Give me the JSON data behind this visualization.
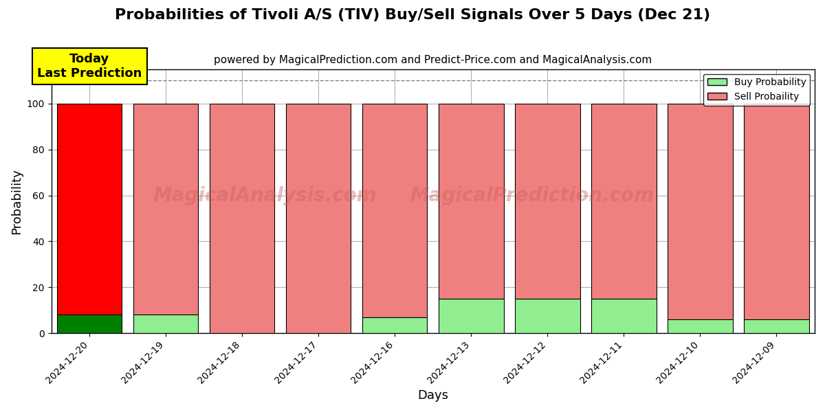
{
  "title": "Probabilities of Tivoli A/S (TIV) Buy/Sell Signals Over 5 Days (Dec 21)",
  "subtitle": "powered by MagicalPrediction.com and Predict-Price.com and MagicalAnalysis.com",
  "xlabel": "Days",
  "ylabel": "Probability",
  "categories": [
    "2024-12-20",
    "2024-12-19",
    "2024-12-18",
    "2024-12-17",
    "2024-12-16",
    "2024-12-13",
    "2024-12-12",
    "2024-12-11",
    "2024-12-10",
    "2024-12-09"
  ],
  "buy_values": [
    8,
    8,
    0,
    0,
    7,
    15,
    15,
    15,
    6,
    6
  ],
  "sell_values": [
    92,
    92,
    100,
    100,
    93,
    85,
    85,
    85,
    94,
    94
  ],
  "today_bar_index": 0,
  "today_buy_color": "#008000",
  "today_sell_color": "#FF0000",
  "other_buy_color": "#90EE90",
  "other_sell_color": "#F08080",
  "today_label_text": "Today\nLast Prediction",
  "today_label_bg": "#FFFF00",
  "legend_buy_label": "Buy Probability",
  "legend_sell_label": "Sell Probaility",
  "ylim": [
    0,
    115
  ],
  "dashed_line_y": 110,
  "bar_edge_color": "#000000",
  "bar_linewidth": 0.8,
  "grid_color": "#aaaaaa",
  "background_color": "#ffffff",
  "title_fontsize": 16,
  "subtitle_fontsize": 11,
  "axis_label_fontsize": 13,
  "tick_fontsize": 10,
  "bar_width": 0.85
}
